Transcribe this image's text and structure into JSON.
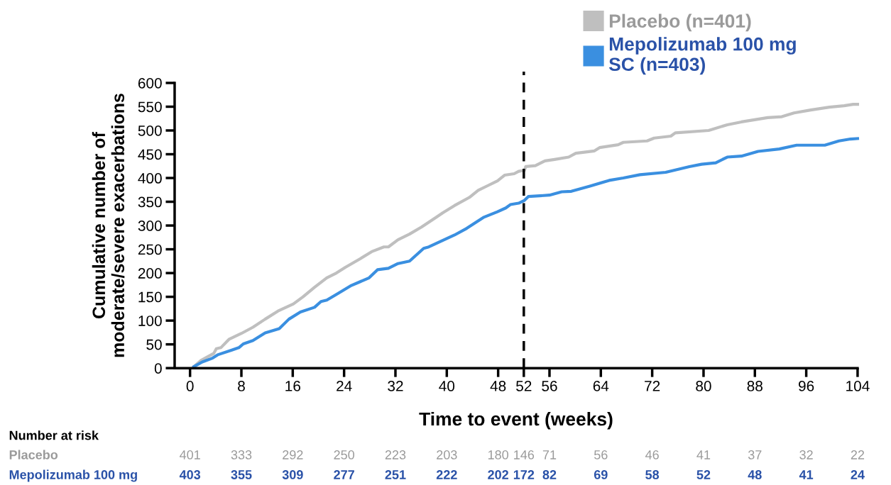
{
  "chart_data": {
    "type": "line",
    "xlabel": "Time to event (weeks)",
    "ylabel": "Cumulative number of\nmoderate/severe exacerbations",
    "xlim": [
      -2.4,
      104
    ],
    "ylim": [
      0,
      600
    ],
    "xticks": [
      0,
      8,
      16,
      24,
      32,
      40,
      48,
      52,
      56,
      64,
      72,
      80,
      88,
      96,
      104
    ],
    "yticks": [
      0,
      50,
      100,
      150,
      200,
      250,
      300,
      350,
      400,
      450,
      500,
      550,
      600
    ],
    "grid": false,
    "legend": "top right",
    "marker": "none",
    "line_style": "solid",
    "ref_lines": [
      {
        "axis": "x",
        "value": 52,
        "color": "#000000",
        "line_style": "dashed"
      }
    ],
    "series": [
      {
        "name": "Placebo (n=401)",
        "color": "#bfbfbf",
        "x": [
          0.6,
          1.7,
          3.7,
          4.1,
          4.8,
          6.1,
          8.0,
          9.8,
          11.7,
          13.7,
          16.1,
          17.6,
          19.4,
          21.3,
          22.8,
          24.2,
          26.5,
          28.3,
          30.2,
          30.9,
          32.4,
          34.2,
          36.1,
          38.3,
          39.4,
          41.2,
          43.5,
          44.9,
          46.4,
          47.9,
          49.0,
          50.5,
          51.2,
          52.1,
          52.3,
          53.8,
          55.3,
          56.8,
          59.0,
          60.1,
          63.0,
          63.8,
          66.7,
          67.5,
          71.2,
          72.3,
          74.9,
          75.6,
          80.8,
          83.7,
          85.9,
          90.0,
          92.2,
          94.1,
          96.7,
          99.6,
          101.9,
          103.3,
          104
        ],
        "values": [
          3,
          16,
          31,
          41,
          43,
          61,
          73,
          86,
          103,
          120,
          135,
          150,
          170,
          190,
          200,
          212,
          230,
          245,
          255,
          255,
          270,
          282,
          297,
          317,
          327,
          342,
          359,
          374,
          384,
          394,
          406,
          409,
          414,
          416,
          424,
          426,
          436,
          439,
          444,
          452,
          457,
          464,
          470,
          475,
          478,
          484,
          488,
          495,
          500,
          512,
          518,
          527,
          529,
          537,
          543,
          549,
          552,
          555,
          555
        ]
      },
      {
        "name": "Mepolizumab 100 mg\nSC (n=403)",
        "color": "#3a8fe0",
        "x": [
          0.6,
          1.9,
          3.5,
          4.3,
          6.5,
          7.6,
          8.3,
          9.8,
          11.7,
          13.9,
          15.4,
          17.2,
          19.4,
          20.4,
          21.3,
          22.8,
          25.0,
          27.9,
          29.2,
          30.9,
          32.4,
          34.2,
          36.4,
          37.2,
          41.2,
          43.1,
          45.7,
          47.9,
          49.2,
          49.9,
          51.2,
          52.1,
          52.7,
          56.0,
          57.9,
          59.4,
          62.3,
          65.3,
          67.5,
          70.1,
          74.1,
          77.8,
          79.7,
          81.9,
          83.7,
          85.9,
          88.5,
          91.8,
          94.5,
          98.9,
          101.1,
          102.9,
          104
        ],
        "values": [
          3,
          13,
          21,
          28,
          38,
          43,
          51,
          58,
          74,
          83,
          103,
          118,
          128,
          140,
          143,
          155,
          173,
          190,
          207,
          210,
          220,
          225,
          252,
          255,
          280,
          294,
          317,
          329,
          337,
          344,
          347,
          353,
          361,
          364,
          371,
          372,
          383,
          395,
          400,
          407,
          412,
          424,
          429,
          432,
          444,
          446,
          456,
          461,
          469,
          469,
          478,
          482,
          483
        ]
      }
    ],
    "annotations": [
      "Number at risk",
      "Placebo",
      "401",
      "333",
      "292",
      "250",
      "223",
      "203",
      "180",
      "146",
      "71",
      "56",
      "46",
      "41",
      "37",
      "32",
      "22",
      "Mepolizumab 100 mg",
      "403",
      "355",
      "309",
      "277",
      "251",
      "222",
      "202",
      "172",
      "82",
      "69",
      "58",
      "52",
      "48",
      "41",
      "24"
    ]
  }
}
